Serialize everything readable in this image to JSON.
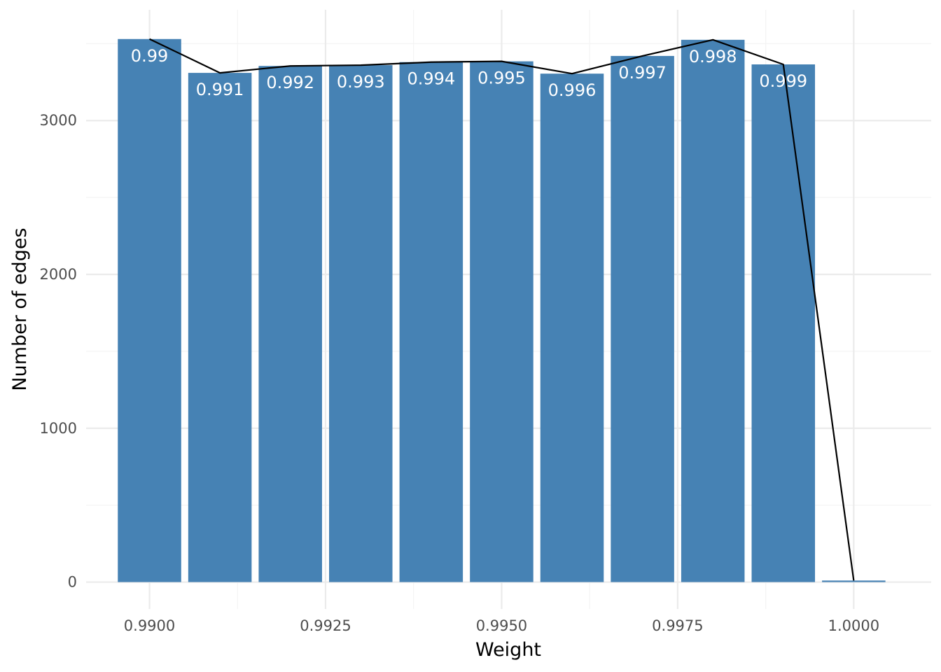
{
  "chart_data": {
    "type": "bar",
    "title": "",
    "xlabel": "Weight",
    "ylabel": "Number of edges",
    "x": [
      0.99,
      0.991,
      0.992,
      0.993,
      0.994,
      0.995,
      0.996,
      0.997,
      0.998,
      0.999,
      1.0
    ],
    "values": [
      3530,
      3310,
      3355,
      3360,
      3380,
      3385,
      3305,
      3420,
      3525,
      3365,
      10
    ],
    "bar_labels": [
      "0.99",
      "0.991",
      "0.992",
      "0.993",
      "0.994",
      "0.995",
      "0.996",
      "0.997",
      "0.998",
      "0.999",
      ""
    ],
    "line_values": [
      3530,
      3310,
      3355,
      3360,
      3380,
      3385,
      3305,
      3420,
      3525,
      3365,
      10
    ],
    "xlim": [
      0.9891,
      1.0011
    ],
    "ylim": [
      -175,
      3720
    ],
    "x_ticks": [
      0.99,
      0.9925,
      0.995,
      0.9975,
      1.0
    ],
    "x_tick_labels": [
      "0.9900",
      "0.9925",
      "0.9950",
      "0.9975",
      "1.0000"
    ],
    "y_ticks": [
      0,
      1000,
      2000,
      3000
    ],
    "y_tick_labels": [
      "0",
      "1000",
      "2000",
      "3000"
    ],
    "grid": true,
    "legend": "none",
    "bar_color": "#4682b4",
    "line_color": "#000000"
  }
}
